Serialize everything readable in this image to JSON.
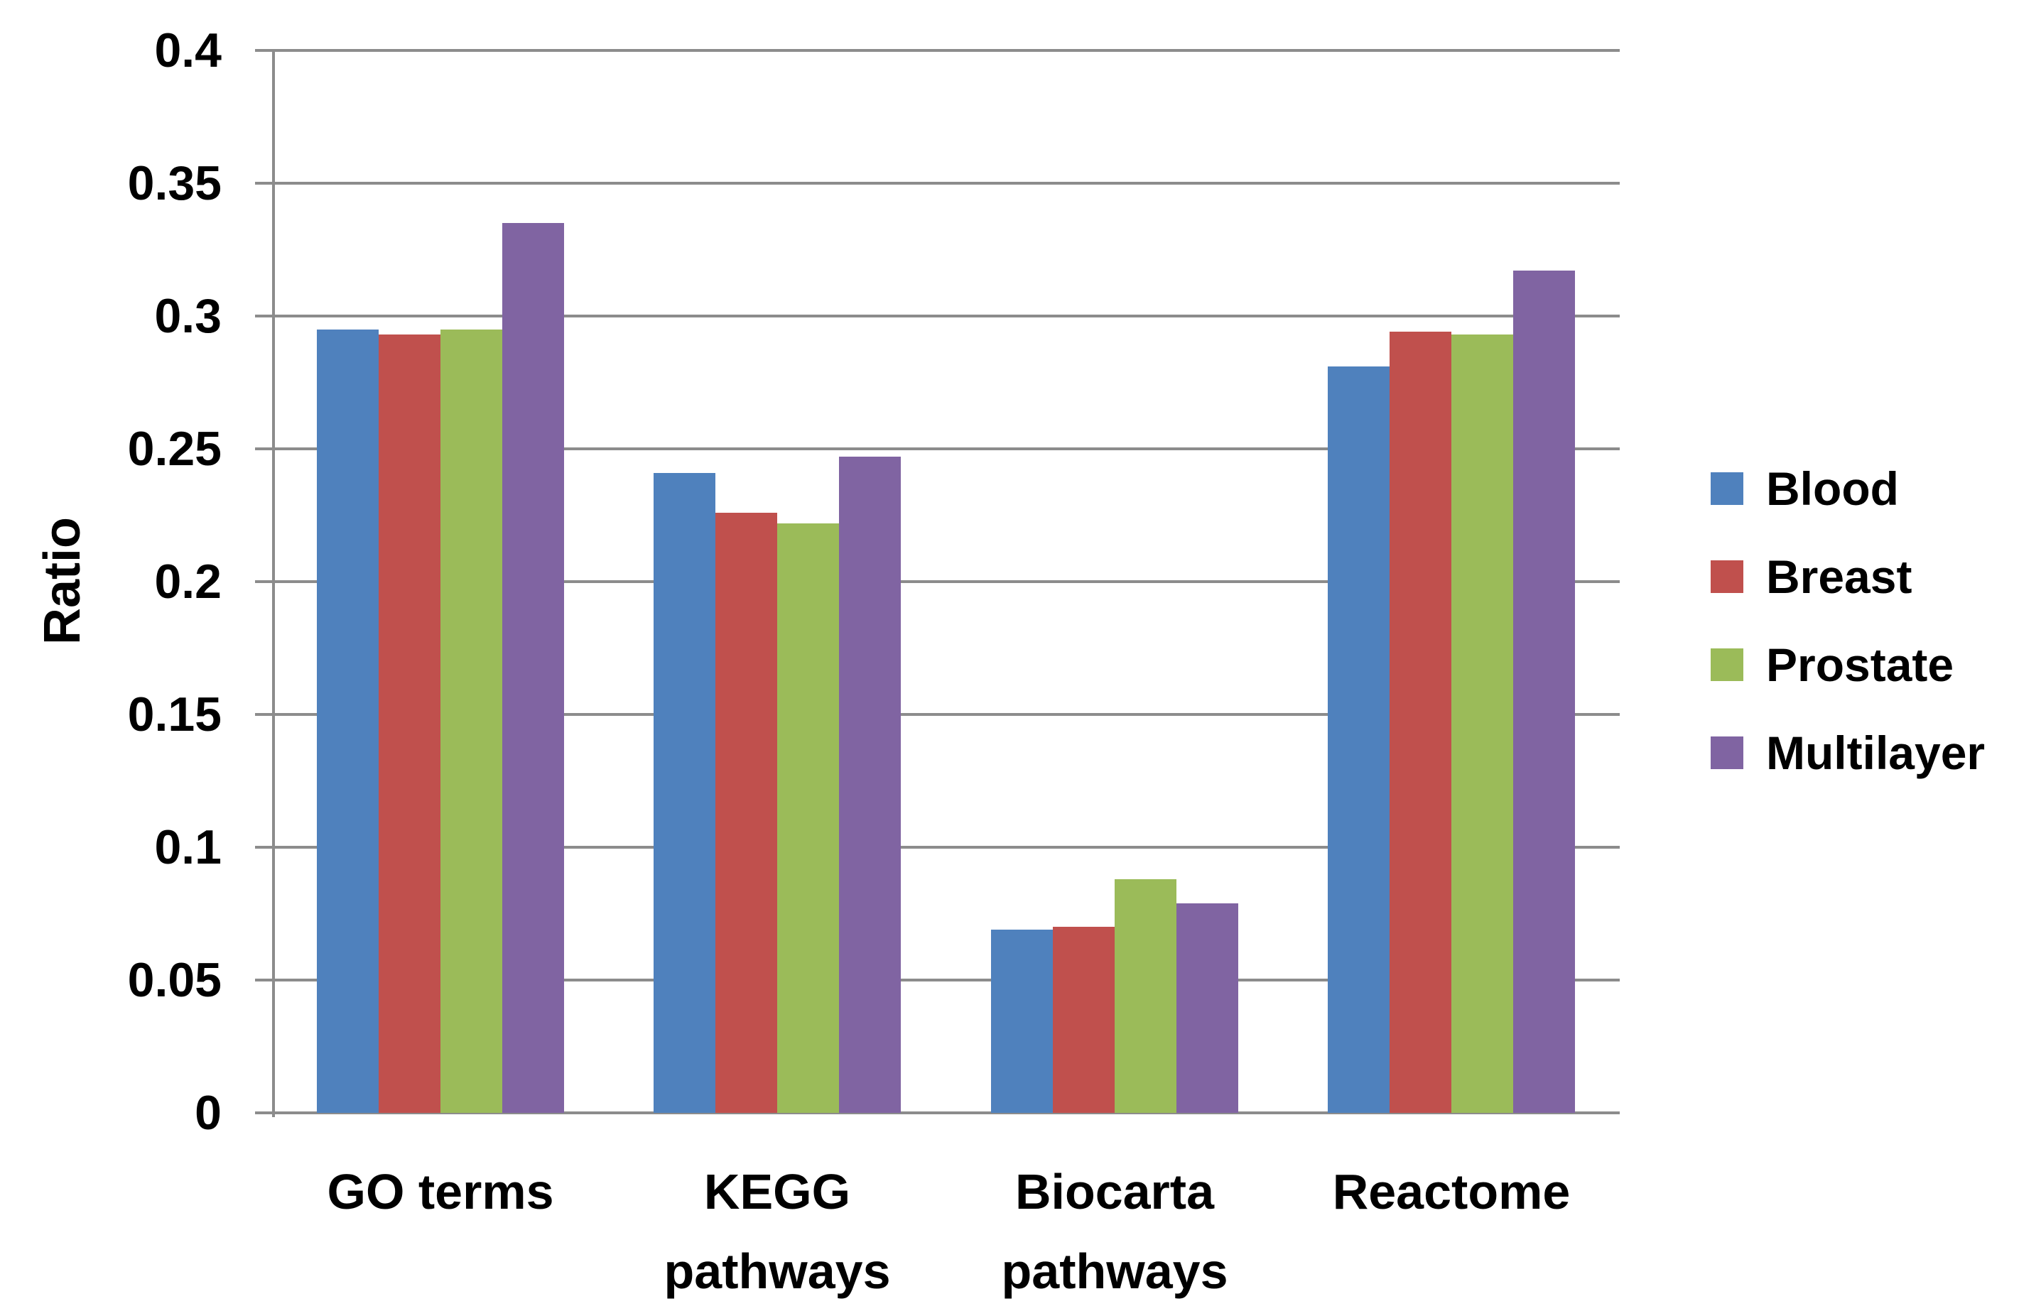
{
  "chart_data": {
    "type": "bar",
    "title": "",
    "xlabel": "",
    "ylabel": "Ratio",
    "ylim": [
      0,
      0.4
    ],
    "ytick_step": 0.05,
    "ytick_labels": [
      "0",
      "0.05",
      "0.1",
      "0.15",
      "0.2",
      "0.25",
      "0.3",
      "0.35",
      "0.4"
    ],
    "grid": "horizontal",
    "legend_position": "right",
    "categories": [
      "GO terms",
      "KEGG pathways",
      "Biocarta pathways",
      "Reactome"
    ],
    "category_label_lines": [
      [
        "GO terms"
      ],
      [
        "KEGG",
        "pathways"
      ],
      [
        "Biocarta",
        "pathways"
      ],
      [
        "Reactome"
      ]
    ],
    "series": [
      {
        "name": "Blood",
        "color": "#4F81BD",
        "values": [
          0.295,
          0.241,
          0.069,
          0.281
        ]
      },
      {
        "name": "Breast",
        "color": "#C0504D",
        "values": [
          0.293,
          0.226,
          0.07,
          0.294
        ]
      },
      {
        "name": "Prostate",
        "color": "#9BBB59",
        "values": [
          0.295,
          0.222,
          0.088,
          0.293
        ]
      },
      {
        "name": "Multilayer",
        "color": "#8064A2",
        "values": [
          0.335,
          0.247,
          0.079,
          0.317
        ]
      }
    ],
    "colors": {
      "gridline": "#8C8C8C",
      "axis": "#8C8C8C",
      "text": "#000000",
      "background": "#FFFFFF"
    }
  }
}
